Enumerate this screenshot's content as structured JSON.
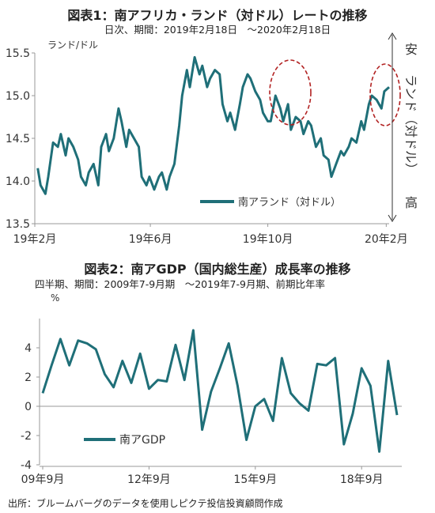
{
  "chart_data": [
    {
      "type": "line",
      "title": "図表1：南アフリカ・ランド（対ドル）レートの推移",
      "subtitle": "日次、期間：2019年2月18日　～2020年2月18日",
      "unit_label": "ランド/ドル",
      "ylim": [
        13.5,
        15.5
      ],
      "y_ticks": [
        "13.5",
        "14.0",
        "14.5",
        "15.0",
        "15.5"
      ],
      "x_ticks": [
        "19年2月",
        "19年6月",
        "19年10月",
        "20年2月"
      ],
      "right_axis": {
        "top": "安",
        "bottom": "高",
        "middle": "ランド（対ドル）"
      },
      "legend": "南アランド（対ドル）",
      "color": "#1f6f78",
      "highlight_color": "#b22222",
      "series": [
        {
          "name": "南アランド（対ドル）",
          "x": [
            "2019-02-18",
            "2019-02-21",
            "2019-02-26",
            "2019-03-01",
            "2019-03-06",
            "2019-03-11",
            "2019-03-14",
            "2019-03-19",
            "2019-03-22",
            "2019-03-27",
            "2019-04-01",
            "2019-04-04",
            "2019-04-09",
            "2019-04-12",
            "2019-04-17",
            "2019-04-22",
            "2019-04-25",
            "2019-04-30",
            "2019-05-03",
            "2019-05-08",
            "2019-05-13",
            "2019-05-16",
            "2019-05-21",
            "2019-05-24",
            "2019-05-29",
            "2019-06-03",
            "2019-06-06",
            "2019-06-11",
            "2019-06-14",
            "2019-06-19",
            "2019-06-24",
            "2019-06-27",
            "2019-07-02",
            "2019-07-05",
            "2019-07-10",
            "2019-07-15",
            "2019-07-18",
            "2019-07-23",
            "2019-07-26",
            "2019-07-31",
            "2019-08-05",
            "2019-08-08",
            "2019-08-13",
            "2019-08-16",
            "2019-08-21",
            "2019-08-26",
            "2019-08-29",
            "2019-09-03",
            "2019-09-06",
            "2019-09-11",
            "2019-09-16",
            "2019-09-19",
            "2019-09-24",
            "2019-09-27",
            "2019-10-02",
            "2019-10-07",
            "2019-10-10",
            "2019-10-15",
            "2019-10-18",
            "2019-10-23",
            "2019-10-28",
            "2019-10-31",
            "2019-11-05",
            "2019-11-08",
            "2019-11-13",
            "2019-11-18",
            "2019-11-21",
            "2019-11-26",
            "2019-11-29",
            "2019-12-04",
            "2019-12-09",
            "2019-12-12",
            "2019-12-17",
            "2019-12-20",
            "2019-12-25",
            "2019-12-30",
            "2020-01-02",
            "2020-01-07",
            "2020-01-10",
            "2020-01-15",
            "2020-01-20",
            "2020-01-23",
            "2020-01-28",
            "2020-01-31",
            "2020-02-05",
            "2020-02-10",
            "2020-02-13",
            "2020-02-18"
          ],
          "y": [
            14.15,
            13.95,
            13.85,
            14.05,
            14.45,
            14.4,
            14.55,
            14.3,
            14.5,
            14.4,
            14.25,
            14.05,
            13.95,
            14.1,
            14.2,
            13.95,
            14.4,
            14.55,
            14.35,
            14.5,
            14.85,
            14.7,
            14.4,
            14.6,
            14.5,
            14.4,
            14.05,
            13.95,
            14.05,
            13.9,
            14.05,
            14.1,
            13.9,
            14.05,
            14.2,
            14.65,
            15.0,
            15.3,
            15.1,
            15.45,
            15.25,
            15.35,
            15.1,
            15.2,
            15.3,
            15.25,
            14.9,
            14.7,
            14.8,
            14.6,
            14.9,
            15.1,
            15.25,
            15.2,
            15.05,
            14.95,
            14.8,
            14.7,
            14.7,
            15.0,
            14.85,
            14.7,
            14.9,
            14.6,
            14.75,
            14.7,
            14.55,
            14.7,
            14.65,
            14.4,
            14.5,
            14.3,
            14.25,
            14.05,
            14.2,
            14.35,
            14.3,
            14.4,
            14.5,
            14.45,
            14.7,
            14.6,
            14.9,
            15.0,
            14.95,
            14.85,
            15.05,
            15.1
          ]
        }
      ]
    },
    {
      "type": "line",
      "title": "図表2：南アGDP（国内総生産）成長率の推移",
      "subtitle": "四半期、期間：2009年7-9月期　～2019年7-9月期、前期比年率",
      "unit_label": "%",
      "ylim": [
        -4,
        6
      ],
      "y_ticks": [
        "-4",
        "-2",
        "0",
        "2",
        "4"
      ],
      "x_ticks": [
        "09年9月",
        "12年9月",
        "15年9月",
        "18年9月"
      ],
      "legend": "南アGDP",
      "color": "#1f6f78",
      "series": [
        {
          "name": "南アGDP",
          "x": [
            "09年9月",
            "09年12月",
            "10年3月",
            "10年6月",
            "10年9月",
            "10年12月",
            "11年3月",
            "11年6月",
            "11年9月",
            "11年12月",
            "12年3月",
            "12年6月",
            "12年9月",
            "12年12月",
            "13年3月",
            "13年6月",
            "13年9月",
            "13年12月",
            "14年3月",
            "14年6月",
            "14年9月",
            "14年12月",
            "15年3月",
            "15年6月",
            "15年9月",
            "15年12月",
            "16年3月",
            "16年6月",
            "16年9月",
            "16年12月",
            "17年3月",
            "17年6月",
            "17年9月",
            "17年12月",
            "18年3月",
            "18年6月",
            "18年9月",
            "18年12月",
            "19年3月",
            "19年6月",
            "19年9月"
          ],
          "y": [
            0.9,
            2.8,
            4.6,
            2.8,
            4.5,
            4.3,
            3.9,
            2.2,
            1.3,
            3.1,
            1.6,
            3.6,
            1.2,
            1.8,
            1.7,
            4.2,
            1.8,
            5.2,
            -1.6,
            1.0,
            2.6,
            4.3,
            1.4,
            -2.3,
            0.0,
            0.5,
            -1.0,
            3.3,
            0.9,
            0.2,
            -0.3,
            2.9,
            2.8,
            3.3,
            -2.6,
            -0.5,
            2.6,
            1.4,
            -3.1,
            3.1,
            -0.6
          ]
        }
      ]
    }
  ],
  "footer": {
    "source": "出所：ブルームバーグのデータを使用しピクテ投信投資顧問作成"
  }
}
